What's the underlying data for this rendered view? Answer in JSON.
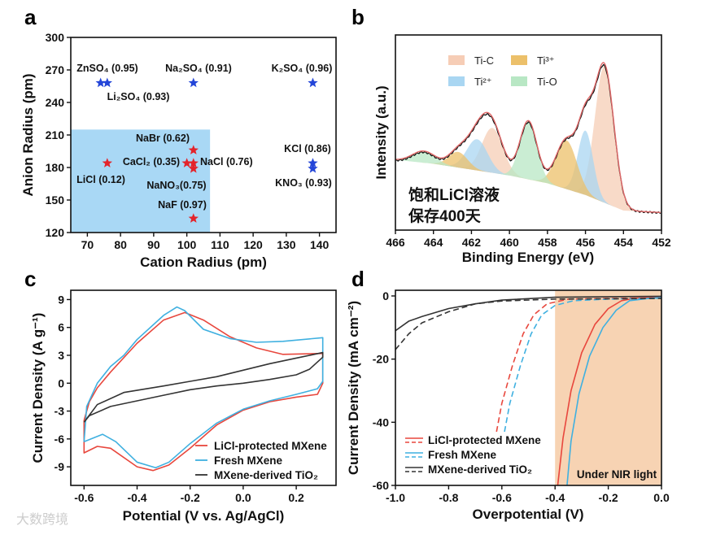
{
  "watermark": "大数跨境",
  "chart_data": [
    {
      "panel": "a",
      "type": "scatter",
      "xlabel": "Cation Radius (pm)",
      "ylabel": "Anion Radius (pm)",
      "xlim": [
        65,
        145
      ],
      "ylim": [
        120,
        300
      ],
      "xticks": [
        70,
        80,
        90,
        100,
        110,
        120,
        130,
        140
      ],
      "yticks": [
        120,
        150,
        180,
        210,
        240,
        270,
        300
      ],
      "shaded_region": {
        "x": [
          65,
          107
        ],
        "y": [
          120,
          215
        ],
        "color": "#a9d8f5"
      },
      "colors": {
        "red": "#e3242b",
        "blue": "#2446d8"
      },
      "points": [
        {
          "label": "ZnSO₄ (0.95)",
          "x": 74,
          "y": 258,
          "color": "blue"
        },
        {
          "label": "Li₂SO₄ (0.93)",
          "x": 76,
          "y": 258,
          "color": "blue"
        },
        {
          "label": "Na₂SO₄ (0.91)",
          "x": 102,
          "y": 258,
          "color": "blue"
        },
        {
          "label": "K₂SO₄ (0.96)",
          "x": 138,
          "y": 258,
          "color": "blue"
        },
        {
          "label": "NaBr (0.62)",
          "x": 102,
          "y": 196,
          "color": "red"
        },
        {
          "label": "CaCl₂ (0.35)",
          "x": 100,
          "y": 184,
          "color": "red"
        },
        {
          "label": "NaCl (0.76)",
          "x": 102,
          "y": 184,
          "color": "red"
        },
        {
          "label": "LiCl (0.12)",
          "x": 76,
          "y": 184,
          "color": "red"
        },
        {
          "label": "NaNO₃(0.75)",
          "x": 102,
          "y": 179,
          "color": "red"
        },
        {
          "label": "KCl (0.86)",
          "x": 138,
          "y": 184,
          "color": "blue"
        },
        {
          "label": "KNO₃ (0.93)",
          "x": 138,
          "y": 179,
          "color": "blue"
        },
        {
          "label": "NaF (0.97)",
          "x": 102,
          "y": 133,
          "color": "red"
        }
      ]
    },
    {
      "panel": "b",
      "type": "area",
      "xlabel": "Binding Energy (eV)",
      "ylabel": "Intensity (a.u.)",
      "xlim": [
        466,
        452
      ],
      "ylim": [
        0,
        1
      ],
      "xticks": [
        466,
        464,
        462,
        460,
        458,
        456,
        454,
        452
      ],
      "annotation": [
        "饱和LiCl溶液",
        "保存400天"
      ],
      "baseline": [
        [
          466,
          0.36
        ],
        [
          464,
          0.34
        ],
        [
          462,
          0.31
        ],
        [
          460,
          0.28
        ],
        [
          458,
          0.24
        ],
        [
          456,
          0.18
        ],
        [
          455,
          0.14
        ],
        [
          454,
          0.1
        ],
        [
          452,
          0.09
        ]
      ],
      "components": [
        {
          "name": "Ti-C",
          "color": "#f6cdb6",
          "peaks": [
            {
              "center": 455.0,
              "height": 0.7,
              "sigma": 0.5
            },
            {
              "center": 460.9,
              "height": 0.23,
              "sigma": 0.55
            }
          ]
        },
        {
          "name": "Ti²⁺",
          "color": "#a9d6f2",
          "peaks": [
            {
              "center": 456.0,
              "height": 0.33,
              "sigma": 0.4
            },
            {
              "center": 461.7,
              "height": 0.16,
              "sigma": 0.55
            }
          ]
        },
        {
          "name": "Ti³⁺",
          "color": "#ecc06a",
          "peaks": [
            {
              "center": 457.0,
              "height": 0.25,
              "sigma": 0.55
            },
            {
              "center": 462.7,
              "height": 0.08,
              "sigma": 0.5
            }
          ]
        },
        {
          "name": "Ti-O",
          "color": "#b8e7c4",
          "peaks": [
            {
              "center": 459.0,
              "height": 0.3,
              "sigma": 0.45
            },
            {
              "center": 464.5,
              "height": 0.06,
              "sigma": 0.6
            }
          ]
        }
      ],
      "envelope_color": "#e06868",
      "data_color": "#111111"
    },
    {
      "panel": "c",
      "type": "line",
      "xlabel": "Potential (V vs. Ag/AgCl)",
      "ylabel": "Current Density (A g⁻¹)",
      "xlim": [
        -0.65,
        0.35
      ],
      "ylim": [
        -11,
        10
      ],
      "xticks": [
        "-0.6",
        "-0.4",
        "-0.2",
        "0.0",
        "0.2"
      ],
      "yticks": [
        "-9",
        "-6",
        "-3",
        "0",
        "3",
        "6",
        "9"
      ],
      "series": [
        {
          "name": "LiCl-protected MXene",
          "color": "#e8473d",
          "dashed": false,
          "points": [
            [
              -0.6,
              -4
            ],
            [
              -0.58,
              -2
            ],
            [
              -0.55,
              -0.5
            ],
            [
              -0.5,
              1.2
            ],
            [
              -0.4,
              4.3
            ],
            [
              -0.3,
              6.8
            ],
            [
              -0.22,
              7.6
            ],
            [
              -0.15,
              6.8
            ],
            [
              -0.05,
              5
            ],
            [
              0.05,
              3.8
            ],
            [
              0.15,
              3.1
            ],
            [
              0.3,
              3.2
            ],
            [
              0.3,
              0
            ],
            [
              0.28,
              -1.2
            ],
            [
              0.2,
              -1.5
            ],
            [
              0.1,
              -2
            ],
            [
              0,
              -2.9
            ],
            [
              -0.1,
              -4.5
            ],
            [
              -0.2,
              -7
            ],
            [
              -0.28,
              -8.8
            ],
            [
              -0.34,
              -9.4
            ],
            [
              -0.4,
              -9
            ],
            [
              -0.5,
              -7
            ],
            [
              -0.55,
              -6.8
            ],
            [
              -0.6,
              -7.5
            ],
            [
              -0.6,
              -4
            ]
          ]
        },
        {
          "name": "Fresh MXene",
          "color": "#3fb0e0",
          "dashed": false,
          "points": [
            [
              -0.6,
              -6.3
            ],
            [
              -0.59,
              -2.5
            ],
            [
              -0.55,
              0
            ],
            [
              -0.5,
              1.8
            ],
            [
              -0.45,
              3
            ],
            [
              -0.4,
              4.7
            ],
            [
              -0.3,
              7.3
            ],
            [
              -0.25,
              8.2
            ],
            [
              -0.22,
              7.8
            ],
            [
              -0.15,
              5.8
            ],
            [
              -0.05,
              4.8
            ],
            [
              0.05,
              4.4
            ],
            [
              0.15,
              4.5
            ],
            [
              0.3,
              4.9
            ],
            [
              0.3,
              0.2
            ],
            [
              0.28,
              -0.6
            ],
            [
              0.2,
              -1.2
            ],
            [
              0.1,
              -1.9
            ],
            [
              0,
              -2.8
            ],
            [
              -0.1,
              -4.3
            ],
            [
              -0.2,
              -6.5
            ],
            [
              -0.28,
              -8.5
            ],
            [
              -0.33,
              -9.1
            ],
            [
              -0.4,
              -8.5
            ],
            [
              -0.48,
              -6.3
            ],
            [
              -0.53,
              -5.5
            ],
            [
              -0.6,
              -6.3
            ]
          ]
        },
        {
          "name": "MXene-derived TiO₂",
          "color": "#333333",
          "dashed": false,
          "points": [
            [
              -0.6,
              -4.2
            ],
            [
              -0.55,
              -2.3
            ],
            [
              -0.45,
              -1
            ],
            [
              -0.3,
              -0.3
            ],
            [
              -0.2,
              0.2
            ],
            [
              -0.1,
              0.7
            ],
            [
              0,
              1.4
            ],
            [
              0.1,
              2.1
            ],
            [
              0.2,
              2.7
            ],
            [
              0.3,
              3.3
            ],
            [
              0.3,
              2.8
            ],
            [
              0.25,
              1.5
            ],
            [
              0.2,
              0.9
            ],
            [
              0.1,
              0.4
            ],
            [
              0,
              0
            ],
            [
              -0.1,
              -0.3
            ],
            [
              -0.2,
              -0.7
            ],
            [
              -0.3,
              -1.3
            ],
            [
              -0.4,
              -1.9
            ],
            [
              -0.5,
              -2.5
            ],
            [
              -0.58,
              -3.5
            ],
            [
              -0.6,
              -4.2
            ]
          ]
        }
      ],
      "legend": "bottom-right"
    },
    {
      "panel": "d",
      "type": "line",
      "xlabel": "Overpotential (V)",
      "ylabel": "Current Density (mA cm⁻²)",
      "xlim": [
        -1.0,
        0.0
      ],
      "ylim": [
        -60,
        1.8
      ],
      "xticks": [
        "-1.0",
        "-0.8",
        "-0.6",
        "-0.4",
        "-0.2",
        "0.0"
      ],
      "yticks": [
        "0",
        "-20",
        "-40",
        "-60"
      ],
      "shaded_region": {
        "x": [
          -0.4,
          0.0
        ],
        "label": "Under NIR light",
        "color": "#f7d3b3"
      },
      "series": [
        {
          "name": "LiCl-protected MXene",
          "color": "#e8473d",
          "dashed": false,
          "points": [
            [
              -0.39,
              -60
            ],
            [
              -0.37,
              -45
            ],
            [
              -0.34,
              -30
            ],
            [
              -0.3,
              -18
            ],
            [
              -0.25,
              -9
            ],
            [
              -0.2,
              -4
            ],
            [
              -0.15,
              -1.5
            ],
            [
              -0.1,
              -0.7
            ],
            [
              0,
              -0.3
            ]
          ]
        },
        {
          "name": "LiCl-protected MXene (dark)",
          "color": "#e8473d",
          "dashed": true,
          "points": [
            [
              -0.62,
              -43
            ],
            [
              -0.6,
              -34
            ],
            [
              -0.56,
              -22
            ],
            [
              -0.52,
              -12
            ],
            [
              -0.48,
              -6
            ],
            [
              -0.43,
              -2.5
            ],
            [
              -0.35,
              -1
            ],
            [
              -0.2,
              -0.8
            ],
            [
              0,
              -0.5
            ]
          ]
        },
        {
          "name": "Fresh MXene",
          "color": "#3fb0e0",
          "dashed": false,
          "points": [
            [
              -0.355,
              -60
            ],
            [
              -0.34,
              -46
            ],
            [
              -0.31,
              -31
            ],
            [
              -0.27,
              -19
            ],
            [
              -0.22,
              -10
            ],
            [
              -0.17,
              -4.5
            ],
            [
              -0.12,
              -1.5
            ],
            [
              -0.05,
              -0.8
            ],
            [
              0,
              -0.5
            ]
          ]
        },
        {
          "name": "Fresh MXene (dark)",
          "color": "#3fb0e0",
          "dashed": true,
          "points": [
            [
              -0.59,
              -43
            ],
            [
              -0.57,
              -34
            ],
            [
              -0.53,
              -22
            ],
            [
              -0.49,
              -12
            ],
            [
              -0.45,
              -6
            ],
            [
              -0.4,
              -3
            ],
            [
              -0.33,
              -1.5
            ],
            [
              -0.2,
              -1
            ],
            [
              0,
              -0.7
            ]
          ]
        },
        {
          "name": "MXene-derived TiO₂",
          "color": "#333333",
          "dashed": false,
          "points": [
            [
              -1,
              -11
            ],
            [
              -0.95,
              -8
            ],
            [
              -0.9,
              -6.5
            ],
            [
              -0.8,
              -4
            ],
            [
              -0.7,
              -2.5
            ],
            [
              -0.6,
              -1.3
            ],
            [
              -0.4,
              -0.4
            ],
            [
              0,
              -0.1
            ]
          ]
        },
        {
          "name": "MXene-derived TiO₂ (dark)",
          "color": "#333333",
          "dashed": true,
          "points": [
            [
              -1,
              -17
            ],
            [
              -0.95,
              -12
            ],
            [
              -0.9,
              -8.5
            ],
            [
              -0.8,
              -5
            ],
            [
              -0.7,
              -2.5
            ],
            [
              -0.6,
              -1.6
            ],
            [
              -0.4,
              -1
            ],
            [
              0,
              -0.8
            ]
          ]
        }
      ],
      "legend_entries": [
        "LiCl-protected MXene",
        "Fresh MXene",
        "MXene-derived TiO₂"
      ],
      "legend": "bottom-left"
    }
  ],
  "panel_labels": [
    "a",
    "b",
    "c",
    "d"
  ]
}
